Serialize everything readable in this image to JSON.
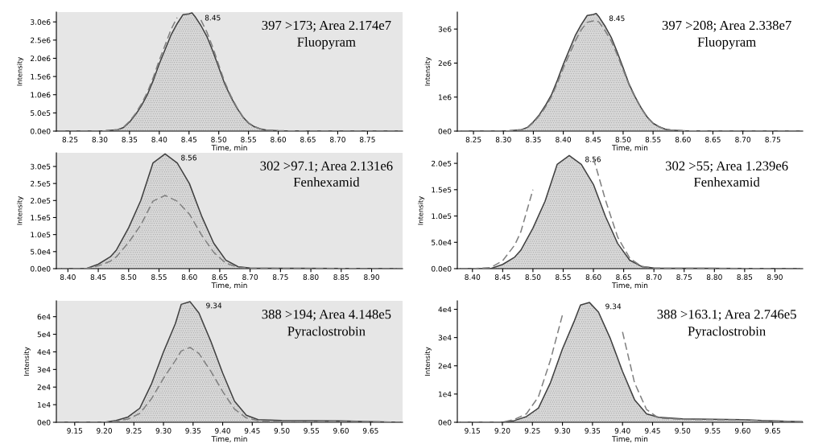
{
  "chart_data": [
    {
      "type": "area",
      "xlabel": "Time, min",
      "ylabel": "Intensity",
      "grid": false,
      "marker": "none",
      "x": [
        8.23,
        8.3,
        8.31,
        8.33,
        8.34,
        8.35,
        8.36,
        8.37,
        8.38,
        8.39,
        8.4,
        8.41,
        8.42,
        8.43,
        8.44,
        8.45,
        8.455,
        8.46,
        8.47,
        8.48,
        8.49,
        8.5,
        8.51,
        8.52,
        8.53,
        8.54,
        8.55,
        8.56,
        8.57,
        8.58,
        8.6,
        8.65,
        8.8
      ],
      "series": [
        {
          "color": "#404040",
          "values": [
            0,
            0,
            10000,
            40000,
            100000,
            250000,
            450000,
            700000,
            1000000,
            1400000,
            1850000,
            2250000,
            2650000,
            2950000,
            3200000,
            3220000,
            3250000,
            3150000,
            2900000,
            2600000,
            2200000,
            1750000,
            1300000,
            950000,
            650000,
            400000,
            220000,
            120000,
            60000,
            30000,
            10000,
            0,
            0
          ]
        },
        {
          "type": "line",
          "line_style": "dashed",
          "color": "#808080",
          "values": [
            0,
            0,
            10000,
            40000,
            110000,
            270000,
            480000,
            750000,
            1070000,
            1480000,
            1950000,
            2370000,
            2800000,
            3120000,
            null,
            null,
            null,
            null,
            3050000,
            2720000,
            2300000,
            1820000,
            1350000,
            980000,
            670000,
            410000,
            230000,
            120000,
            60000,
            30000,
            10000,
            0,
            0
          ]
        }
      ],
      "xlim": [
        8.227,
        8.809
      ],
      "ylim": [
        0,
        3270000
      ],
      "xticks": [
        {
          "value": 8.25,
          "label": "8.25"
        },
        {
          "value": 8.3,
          "label": "8.30"
        },
        {
          "value": 8.35,
          "label": "8.35"
        },
        {
          "value": 8.4,
          "label": "8.40"
        },
        {
          "value": 8.45,
          "label": "8.45"
        },
        {
          "value": 8.5,
          "label": "8.50"
        },
        {
          "value": 8.55,
          "label": "8.55"
        },
        {
          "value": 8.6,
          "label": "8.60"
        },
        {
          "value": 8.65,
          "label": "8.65"
        },
        {
          "value": 8.7,
          "label": "8.70"
        },
        {
          "value": 8.75,
          "label": "8.75"
        }
      ],
      "yticks": [
        {
          "value": 0,
          "label": "0.0e0"
        },
        {
          "value": 500000,
          "label": "5.0e5"
        },
        {
          "value": 1000000,
          "label": "1.0e6"
        },
        {
          "value": 1500000,
          "label": "1.5e6"
        },
        {
          "value": 2000000,
          "label": "2.0e6"
        },
        {
          "value": 2500000,
          "label": "2.5e6"
        },
        {
          "value": 3000000,
          "label": "3.0e6"
        }
      ],
      "annotations": [
        {
          "text": "8.45",
          "x": 8.45,
          "y": 3220000
        },
        "397 >173; Area 2.174e7",
        "Fluopyram"
      ]
    },
    {
      "type": "area",
      "xlabel": "Time, min",
      "ylabel": "Intensity",
      "grid": false,
      "marker": "none",
      "x": [
        8.23,
        8.3,
        8.31,
        8.33,
        8.34,
        8.35,
        8.36,
        8.37,
        8.38,
        8.39,
        8.4,
        8.41,
        8.42,
        8.43,
        8.44,
        8.45,
        8.455,
        8.46,
        8.47,
        8.48,
        8.49,
        8.5,
        8.51,
        8.52,
        8.53,
        8.54,
        8.55,
        8.56,
        8.57,
        8.58,
        8.6,
        8.65,
        8.8
      ],
      "series": [
        {
          "color": "#404040",
          "values": [
            0,
            0,
            10000,
            40000,
            110000,
            270000,
            480000,
            750000,
            1060000,
            1490000,
            1960000,
            2390000,
            2810000,
            3130000,
            3400000,
            3430000,
            3460000,
            3350000,
            3080000,
            2760000,
            2330000,
            1860000,
            1380000,
            1010000,
            690000,
            420000,
            230000,
            130000,
            60000,
            30000,
            10000,
            0,
            0
          ]
        },
        {
          "type": "line",
          "line_style": "dashed",
          "color": "#808080",
          "values": [
            0,
            0,
            10000,
            40000,
            100000,
            250000,
            450000,
            700000,
            1000000,
            1400000,
            1850000,
            2250000,
            2650000,
            2980000,
            3200000,
            3240000,
            3250000,
            3200000,
            2950000,
            2650000,
            2250000,
            1800000,
            1350000,
            980000,
            670000,
            410000,
            230000,
            120000,
            60000,
            30000,
            10000,
            0,
            0
          ]
        }
      ],
      "xlim": [
        8.223,
        8.8
      ],
      "ylim": [
        0,
        3500000
      ],
      "xticks": [
        {
          "value": 8.25,
          "label": "8.25"
        },
        {
          "value": 8.3,
          "label": "8.30"
        },
        {
          "value": 8.35,
          "label": "8.35"
        },
        {
          "value": 8.4,
          "label": "8.40"
        },
        {
          "value": 8.45,
          "label": "8.45"
        },
        {
          "value": 8.5,
          "label": "8.50"
        },
        {
          "value": 8.55,
          "label": "8.55"
        },
        {
          "value": 8.6,
          "label": "8.60"
        },
        {
          "value": 8.65,
          "label": "8.65"
        },
        {
          "value": 8.7,
          "label": "8.70"
        },
        {
          "value": 8.75,
          "label": "8.75"
        }
      ],
      "yticks": [
        {
          "value": 0,
          "label": "0e0"
        },
        {
          "value": 1000000,
          "label": "1e6"
        },
        {
          "value": 2000000,
          "label": "2e6"
        },
        {
          "value": 3000000,
          "label": "3e6"
        }
      ],
      "annotations": [
        {
          "text": "8.45",
          "x": 8.45,
          "y": 3430000
        },
        "397 >208; Area 2.338e7",
        "Fluopyram"
      ]
    },
    {
      "type": "area",
      "xlabel": "Time, min",
      "ylabel": "Intensity",
      "grid": false,
      "marker": "none",
      "x": [
        8.39,
        8.4,
        8.43,
        8.45,
        8.47,
        8.48,
        8.5,
        8.52,
        8.54,
        8.56,
        8.58,
        8.6,
        8.62,
        8.64,
        8.66,
        8.68,
        8.7,
        8.94
      ],
      "series": [
        {
          "color": "#404040",
          "values": [
            0,
            0,
            0,
            13000,
            35000,
            55000,
            120000,
            200000,
            310000,
            337000,
            310000,
            250000,
            155000,
            75000,
            25000,
            6000,
            2000,
            0
          ]
        },
        {
          "type": "line",
          "line_style": "dashed",
          "color": "#808080",
          "values": [
            0,
            0,
            0,
            8000,
            22000,
            35000,
            77000,
            128000,
            198000,
            215000,
            198000,
            160000,
            99000,
            48000,
            16000,
            4000,
            1000,
            0
          ]
        }
      ],
      "xlim": [
        8.381,
        8.951
      ],
      "ylim": [
        0,
        340000
      ],
      "xticks": [
        {
          "value": 8.4,
          "label": "8.40"
        },
        {
          "value": 8.45,
          "label": "8.45"
        },
        {
          "value": 8.5,
          "label": "8.50"
        },
        {
          "value": 8.55,
          "label": "8.55"
        },
        {
          "value": 8.6,
          "label": "8.60"
        },
        {
          "value": 8.65,
          "label": "8.65"
        },
        {
          "value": 8.7,
          "label": "8.70"
        },
        {
          "value": 8.75,
          "label": "8.75"
        },
        {
          "value": 8.8,
          "label": "8.80"
        },
        {
          "value": 8.85,
          "label": "8.85"
        },
        {
          "value": 8.9,
          "label": "8.90"
        }
      ],
      "yticks": [
        {
          "value": 0,
          "label": "0.0e0"
        },
        {
          "value": 50000,
          "label": "5.0e4"
        },
        {
          "value": 100000,
          "label": "1.0e5"
        },
        {
          "value": 150000,
          "label": "1.5e5"
        },
        {
          "value": 200000,
          "label": "2.0e5"
        },
        {
          "value": 250000,
          "label": "2.5e5"
        },
        {
          "value": 300000,
          "label": "3.0e5"
        }
      ],
      "annotations": [
        {
          "text": "8.56",
          "x": 8.56,
          "y": 337000
        },
        "302 >97.1; Area 2.131e6",
        "Fenhexamid"
      ]
    },
    {
      "type": "area",
      "xlabel": "Time, min",
      "ylabel": "Intensity",
      "grid": false,
      "marker": "none",
      "x": [
        8.38,
        8.4,
        8.43,
        8.45,
        8.47,
        8.48,
        8.5,
        8.52,
        8.54,
        8.56,
        8.58,
        8.6,
        8.62,
        8.64,
        8.66,
        8.68,
        8.7,
        8.94
      ],
      "series": [
        {
          "color": "#404040",
          "values": [
            0,
            0,
            0,
            8000,
            22000,
            35000,
            77000,
            128000,
            198000,
            215000,
            198000,
            160000,
            99000,
            48000,
            16000,
            4000,
            1000,
            0
          ]
        },
        {
          "type": "line",
          "line_style": "dashed",
          "color": "#808080",
          "values": [
            0,
            0,
            2000,
            15000,
            45000,
            70000,
            150000,
            null,
            null,
            null,
            null,
            210000,
            130000,
            60000,
            20000,
            4000,
            1000,
            0
          ]
        }
      ],
      "xlim": [
        8.375,
        8.946
      ],
      "ylim": [
        0,
        220000
      ],
      "xticks": [
        {
          "value": 8.4,
          "label": "8.40"
        },
        {
          "value": 8.45,
          "label": "8.45"
        },
        {
          "value": 8.5,
          "label": "8.50"
        },
        {
          "value": 8.55,
          "label": "8.55"
        },
        {
          "value": 8.6,
          "label": "8.60"
        },
        {
          "value": 8.65,
          "label": "8.65"
        },
        {
          "value": 8.7,
          "label": "8.70"
        },
        {
          "value": 8.75,
          "label": "8.75"
        },
        {
          "value": 8.8,
          "label": "8.80"
        },
        {
          "value": 8.85,
          "label": "8.85"
        },
        {
          "value": 8.9,
          "label": "8.90"
        }
      ],
      "yticks": [
        {
          "value": 0,
          "label": "0.0e0"
        },
        {
          "value": 50000,
          "label": "5.0e4"
        },
        {
          "value": 100000,
          "label": "1.0e5"
        },
        {
          "value": 150000,
          "label": "1.5e5"
        },
        {
          "value": 200000,
          "label": "2.0e5"
        }
      ],
      "annotations": [
        {
          "text": "8.56",
          "x": 8.56,
          "y": 215000
        },
        "302 >55; Area 1.239e6",
        "Fenhexamid"
      ]
    },
    {
      "type": "area",
      "xlabel": "Time, min",
      "ylabel": "Intensity",
      "grid": false,
      "marker": "none",
      "x": [
        9.12,
        9.2,
        9.22,
        9.24,
        9.26,
        9.28,
        9.3,
        9.32,
        9.33,
        9.345,
        9.36,
        9.38,
        9.4,
        9.42,
        9.44,
        9.46,
        9.5,
        9.6,
        9.64,
        9.7
      ],
      "series": [
        {
          "color": "#404040",
          "values": [
            0,
            0,
            1000,
            3000,
            8000,
            22000,
            40000,
            56000,
            67000,
            68500,
            62000,
            46000,
            28000,
            12000,
            4000,
            1500,
            1000,
            800,
            500,
            0
          ]
        },
        {
          "type": "line",
          "line_style": "dashed",
          "color": "#808080",
          "values": [
            0,
            0,
            600,
            1800,
            5000,
            13500,
            25000,
            35000,
            40500,
            42500,
            39000,
            29000,
            17500,
            7500,
            2500,
            900,
            600,
            500,
            300,
            0
          ]
        }
      ],
      "xlim": [
        9.119,
        9.704
      ],
      "ylim": [
        0,
        69000
      ],
      "xticks": [
        {
          "value": 9.15,
          "label": "9.15"
        },
        {
          "value": 9.2,
          "label": "9.20"
        },
        {
          "value": 9.25,
          "label": "9.25"
        },
        {
          "value": 9.3,
          "label": "9.30"
        },
        {
          "value": 9.35,
          "label": "9.35"
        },
        {
          "value": 9.4,
          "label": "9.40"
        },
        {
          "value": 9.45,
          "label": "9.45"
        },
        {
          "value": 9.5,
          "label": "9.50"
        },
        {
          "value": 9.55,
          "label": "9.55"
        },
        {
          "value": 9.6,
          "label": "9.60"
        },
        {
          "value": 9.65,
          "label": "9.65"
        }
      ],
      "yticks": [
        {
          "value": 0,
          "label": "0e0"
        },
        {
          "value": 10000,
          "label": "1e4"
        },
        {
          "value": 20000,
          "label": "2e4"
        },
        {
          "value": 30000,
          "label": "3e4"
        },
        {
          "value": 40000,
          "label": "4e4"
        },
        {
          "value": 50000,
          "label": "5e4"
        },
        {
          "value": 60000,
          "label": "6e4"
        }
      ],
      "annotations": [
        {
          "text": "9.34",
          "x": 9.345,
          "y": 68500
        },
        "388 >194; Area 4.148e5",
        "Pyraclostrobin"
      ]
    },
    {
      "type": "area",
      "xlabel": "Time, min",
      "ylabel": "Intensity",
      "grid": false,
      "marker": "none",
      "x": [
        9.13,
        9.2,
        9.22,
        9.24,
        9.26,
        9.28,
        9.3,
        9.32,
        9.33,
        9.345,
        9.36,
        9.38,
        9.4,
        9.42,
        9.44,
        9.46,
        9.5,
        9.6,
        9.64,
        9.7
      ],
      "series": [
        {
          "color": "#404040",
          "values": [
            0,
            0,
            600,
            2000,
            5000,
            14000,
            26000,
            36000,
            41500,
            42400,
            39000,
            29500,
            18000,
            8000,
            3000,
            1800,
            1200,
            900,
            600,
            200
          ]
        },
        {
          "type": "line",
          "line_style": "dashed",
          "color": "#808080",
          "values": [
            0,
            0,
            1000,
            3000,
            9000,
            22000,
            38000,
            null,
            null,
            null,
            null,
            null,
            32000,
            14000,
            4500,
            1500,
            1000,
            800,
            500,
            200
          ]
        }
      ],
      "xlim": [
        9.125,
        9.7
      ],
      "ylim": [
        0,
        43000
      ],
      "xticks": [
        {
          "value": 9.15,
          "label": "9.15"
        },
        {
          "value": 9.2,
          "label": "9.20"
        },
        {
          "value": 9.25,
          "label": "9.25"
        },
        {
          "value": 9.3,
          "label": "9.30"
        },
        {
          "value": 9.35,
          "label": "9.35"
        },
        {
          "value": 9.4,
          "label": "9.40"
        },
        {
          "value": 9.45,
          "label": "9.45"
        },
        {
          "value": 9.5,
          "label": "9.50"
        },
        {
          "value": 9.55,
          "label": "9.55"
        },
        {
          "value": 9.6,
          "label": "9.60"
        },
        {
          "value": 9.65,
          "label": "9.65"
        }
      ],
      "yticks": [
        {
          "value": 0,
          "label": "0e0"
        },
        {
          "value": 10000,
          "label": "1e4"
        },
        {
          "value": 20000,
          "label": "2e4"
        },
        {
          "value": 30000,
          "label": "3e4"
        },
        {
          "value": 40000,
          "label": "4e4"
        }
      ],
      "annotations": [
        {
          "text": "9.34",
          "x": 9.345,
          "y": 42400
        },
        "388 >163.1; Area 2.746e5",
        "Pyraclostrobin"
      ]
    }
  ]
}
